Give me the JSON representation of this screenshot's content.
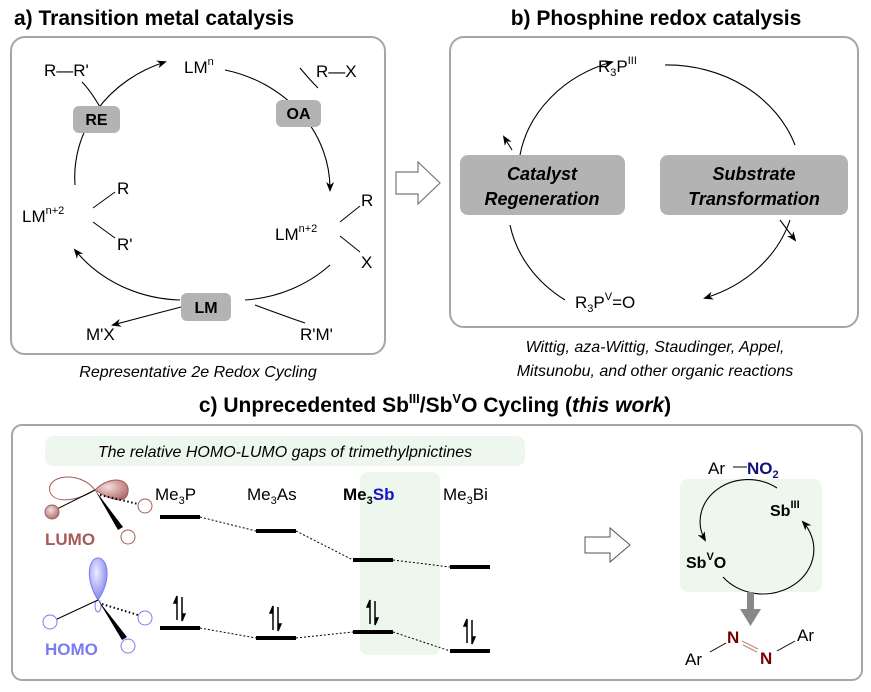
{
  "panel_a": {
    "title": "a) Transition metal catalysis",
    "lm_n": "LM",
    "lm_n_sup": "n",
    "r_r": "R—R'",
    "r_x": "R—X",
    "re": "RE",
    "oa": "OA",
    "lm_n2": "LM",
    "lm_n2_sup": "n+2",
    "r": "R",
    "r_prime": "R'",
    "x": "X",
    "lm": "LM",
    "mx": "M'X",
    "rm": "R'M'",
    "caption": "Representative 2e Redox Cycling"
  },
  "panel_b": {
    "title": "b) Phosphine redox catalysis",
    "p3": "R",
    "p3_sub": "3",
    "p3_p": "P",
    "p3_sup": "III",
    "p5": "R",
    "p5_sub": "3",
    "p5_p": "P",
    "p5_sup": "V",
    "p5_o": "=O",
    "catalyst_1": "Catalyst",
    "catalyst_2": "Regeneration",
    "substrate_1": "Substrate",
    "substrate_2": "Transformation",
    "caption_1": "Wittig, aza-Wittig, Staudinger, Appel,",
    "caption_2": "Mitsunobu, and other organic reactions"
  },
  "panel_c": {
    "title_a": "c) Unprecedented Sb",
    "title_sup1": "III",
    "title_b": "/Sb",
    "title_sup2": "V",
    "title_c": "O Cycling (",
    "title_em": "this work",
    "title_d": ")",
    "gap_label": "The relative HOMO-LUMO gaps of trimethylpnictines",
    "lumo": "LUMO",
    "homo": "HOMO",
    "compounds": [
      {
        "me": "Me",
        "sub": "3",
        "el": "P"
      },
      {
        "me": "Me",
        "sub": "3",
        "el": "As"
      },
      {
        "me": "Me",
        "sub": "3",
        "el": "Sb"
      },
      {
        "me": "Me",
        "sub": "3",
        "el": "Bi"
      }
    ],
    "ar_no2_ar": "Ar",
    "ar_no2_no": "NO",
    "ar_no2_sub": "2",
    "sb3": "Sb",
    "sb3_sup": "III",
    "sb5": "Sb",
    "sb5_sup": "V",
    "sb5_o": "O",
    "azo_ar1": "Ar",
    "azo_n1": "N",
    "azo_n2": "N",
    "azo_ar2": "Ar"
  },
  "colors": {
    "lumo": "#a65a5a",
    "homo": "#7b7bf0",
    "sb": "#1515c8",
    "no2": "#12127a",
    "azo_n": "#7a0000",
    "highlight": "#eef7ee",
    "label_box": "#b3b3b3"
  }
}
